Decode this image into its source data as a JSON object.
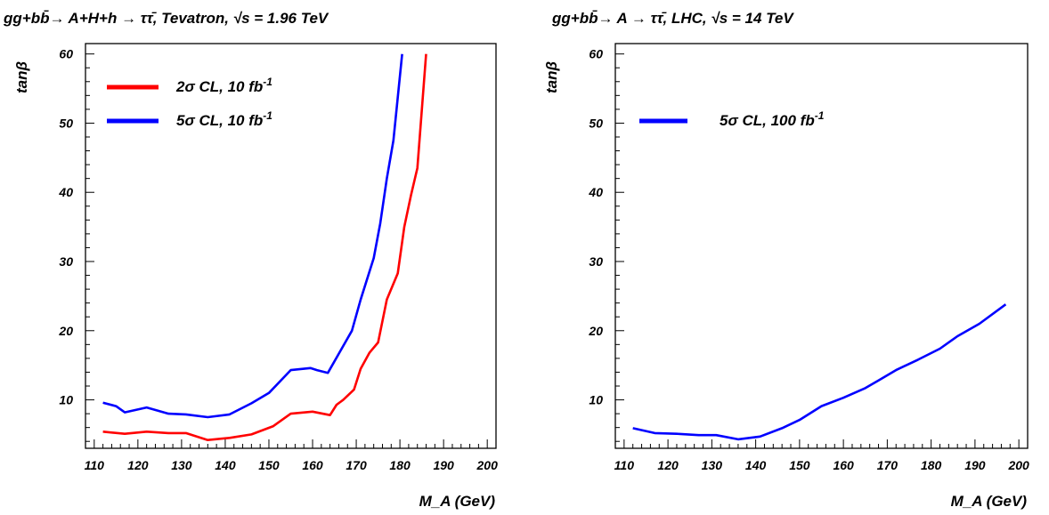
{
  "chart_data": [
    {
      "type": "line",
      "title": "gg+bb̄→ A+H+h → ττ̄, Tevatron, √s = 1.96 TeV",
      "xlabel": "M_A (GeV)",
      "ylabel": "tanβ",
      "xlim": [
        108,
        202
      ],
      "ylim": [
        3,
        61.5
      ],
      "xticks": [
        "110",
        "120",
        "130",
        "140",
        "150",
        "160",
        "170",
        "180",
        "190",
        "200"
      ],
      "yticks": [
        "10",
        "20",
        "30",
        "40",
        "50",
        "60"
      ],
      "legend_position": "top-left",
      "series": [
        {
          "name": "2σ CL, 10 fb-1",
          "color": "#ff0000",
          "points": [
            [
              112,
              5.4
            ],
            [
              117,
              5.1
            ],
            [
              122,
              5.4
            ],
            [
              127,
              5.2
            ],
            [
              131,
              5.2
            ],
            [
              136,
              4.2
            ],
            [
              141,
              4.5
            ],
            [
              146,
              5.0
            ],
            [
              151,
              6.2
            ],
            [
              155,
              8.0
            ],
            [
              160,
              8.3
            ],
            [
              164,
              7.8
            ],
            [
              165.5,
              9.3
            ],
            [
              167,
              10.0
            ],
            [
              169.5,
              11.5
            ],
            [
              171,
              14.5
            ],
            [
              173,
              16.8
            ],
            [
              175,
              18.3
            ],
            [
              177,
              24.5
            ],
            [
              179.5,
              28.3
            ],
            [
              181,
              35.0
            ],
            [
              182.5,
              39.5
            ],
            [
              184,
              43.5
            ],
            [
              186,
              60.0
            ]
          ]
        },
        {
          "name": "5σ CL, 10 fb-1",
          "color": "#0000ff",
          "points": [
            [
              112,
              9.6
            ],
            [
              115,
              9.1
            ],
            [
              117,
              8.2
            ],
            [
              122,
              8.9
            ],
            [
              127,
              8.0
            ],
            [
              131,
              7.9
            ],
            [
              136,
              7.5
            ],
            [
              141,
              7.9
            ],
            [
              146,
              9.5
            ],
            [
              150,
              11.0
            ],
            [
              155,
              14.3
            ],
            [
              159.5,
              14.6
            ],
            [
              161,
              14.3
            ],
            [
              163.5,
              13.9
            ],
            [
              169,
              20.0
            ],
            [
              171,
              24.5
            ],
            [
              174,
              30.5
            ],
            [
              175.5,
              35.5
            ],
            [
              177,
              42.0
            ],
            [
              178.5,
              47.5
            ],
            [
              180.5,
              60.0
            ]
          ]
        }
      ]
    },
    {
      "type": "line",
      "title": "gg+bb̄→ A → ττ̄, LHC, √s = 14 TeV",
      "xlabel": "M_A (GeV)",
      "ylabel": "tanβ",
      "xlim": [
        108,
        202
      ],
      "ylim": [
        3,
        61.5
      ],
      "xticks": [
        "110",
        "120",
        "130",
        "140",
        "150",
        "160",
        "170",
        "180",
        "190",
        "200"
      ],
      "yticks": [
        "10",
        "20",
        "30",
        "40",
        "50",
        "60"
      ],
      "legend_position": "top-left",
      "series": [
        {
          "name": "5σ CL, 100 fb-1",
          "color": "#0000ff",
          "points": [
            [
              112,
              5.9
            ],
            [
              117,
              5.2
            ],
            [
              122,
              5.1
            ],
            [
              127,
              4.9
            ],
            [
              131,
              4.9
            ],
            [
              136,
              4.3
            ],
            [
              141,
              4.7
            ],
            [
              146,
              5.9
            ],
            [
              150,
              7.1
            ],
            [
              155,
              9.1
            ],
            [
              160,
              10.3
            ],
            [
              165,
              11.7
            ],
            [
              168,
              12.8
            ],
            [
              172,
              14.3
            ],
            [
              177,
              15.8
            ],
            [
              182,
              17.4
            ],
            [
              186,
              19.2
            ],
            [
              191,
              21.0
            ],
            [
              197,
              23.8
            ]
          ]
        }
      ]
    }
  ],
  "legend_labels": {
    "left": [
      {
        "main": "2σ CL, 10 fb",
        "sup": "-1"
      },
      {
        "main": "5σ CL, 10 fb",
        "sup": "-1"
      }
    ],
    "right": [
      {
        "main": "5σ CL, 100 fb",
        "sup": "-1"
      }
    ]
  }
}
